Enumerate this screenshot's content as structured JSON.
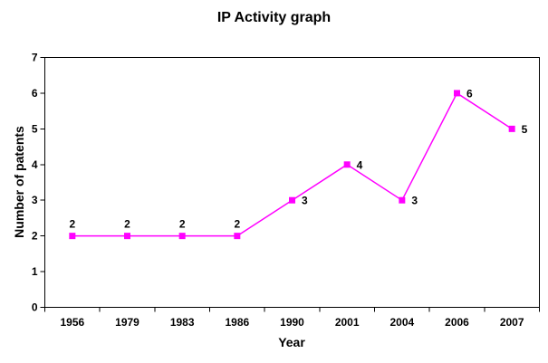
{
  "chart_data": {
    "type": "line",
    "title": "IP Activity graph",
    "xlabel": "Year",
    "ylabel": "Number of patents",
    "categories": [
      "1956",
      "1979",
      "1983",
      "1986",
      "1990",
      "2001",
      "2004",
      "2006",
      "2007"
    ],
    "values": [
      2,
      2,
      2,
      2,
      3,
      4,
      3,
      6,
      5
    ],
    "data_labels": [
      "2",
      "2",
      "2",
      "2",
      "3",
      "4",
      "3",
      "6",
      "5"
    ],
    "data_label_positions": [
      "above",
      "above",
      "above",
      "above",
      "right",
      "right",
      "right",
      "right",
      "right"
    ],
    "yticks": [
      "0",
      "1",
      "2",
      "3",
      "4",
      "5",
      "6",
      "7"
    ],
    "ylim": [
      0,
      7
    ],
    "series_color": "#FF00FF",
    "marker": "square",
    "axis_color": "#000000",
    "text_color": "#000000",
    "background": "#FFFFFF",
    "grid": false,
    "legend": "none"
  }
}
